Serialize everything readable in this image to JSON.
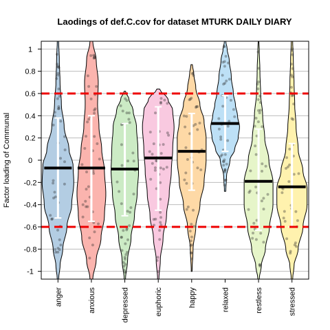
{
  "chart_data": {
    "type": "violin",
    "title": "Laodings of def.C.cov for dataset MTURK DAILY DIARY",
    "xlabel": "",
    "ylabel": "Factor loading of Communal",
    "ylim": [
      -1.07,
      1.07
    ],
    "yticks": [
      "-1",
      "-0.8",
      "-0.6",
      "-0.4",
      "-0.2",
      "0",
      "0.2",
      "0.4",
      "0.6",
      "0.8",
      "1"
    ],
    "ytick_values": [
      -1,
      -0.8,
      -0.6,
      -0.4,
      -0.2,
      0,
      0.2,
      0.4,
      0.6,
      0.8,
      1
    ],
    "grid": true,
    "reference_lines": [
      0.6,
      -0.6
    ],
    "reference_line_color": "#ee0000",
    "categories": [
      "anger",
      "anxious",
      "depressed",
      "euphoric",
      "happy",
      "relaxed",
      "restless",
      "stressed"
    ],
    "series": [
      {
        "color": "#b3cde3",
        "mean": -0.07,
        "sd_low": -0.52,
        "sd_high": 0.38,
        "min": -1.07,
        "max": 1.07,
        "profile": [
          [
            -1.07,
            1
          ],
          [
            -0.95,
            3
          ],
          [
            -0.8,
            7
          ],
          [
            -0.6,
            13
          ],
          [
            -0.4,
            20
          ],
          [
            -0.2,
            23
          ],
          [
            -0.05,
            22
          ],
          [
            0.1,
            16
          ],
          [
            0.3,
            9
          ],
          [
            0.5,
            5
          ],
          [
            0.7,
            3
          ],
          [
            0.9,
            2
          ],
          [
            1.07,
            1
          ]
        ]
      },
      {
        "color": "#fbb4ae",
        "mean": -0.07,
        "sd_low": -0.55,
        "sd_high": 0.4,
        "min": -1.07,
        "max": 1.07,
        "profile": [
          [
            -1.07,
            2
          ],
          [
            -0.9,
            7
          ],
          [
            -0.7,
            14
          ],
          [
            -0.5,
            19
          ],
          [
            -0.3,
            21
          ],
          [
            -0.1,
            19
          ],
          [
            0.1,
            15
          ],
          [
            0.3,
            11
          ],
          [
            0.5,
            9
          ],
          [
            0.7,
            10
          ],
          [
            0.9,
            7
          ],
          [
            1.07,
            2
          ]
        ]
      },
      {
        "color": "#ccebc5",
        "mean": -0.08,
        "sd_low": -0.5,
        "sd_high": 0.33,
        "min": -1.07,
        "max": 0.62,
        "profile": [
          [
            -1.07,
            1
          ],
          [
            -0.9,
            4
          ],
          [
            -0.7,
            9
          ],
          [
            -0.5,
            14
          ],
          [
            -0.3,
            18
          ],
          [
            -0.1,
            20
          ],
          [
            0.1,
            19
          ],
          [
            0.3,
            17
          ],
          [
            0.45,
            12
          ],
          [
            0.55,
            6
          ],
          [
            0.62,
            1
          ]
        ]
      },
      {
        "color": "#f9c9e0",
        "mean": 0.02,
        "sd_low": -0.45,
        "sd_high": 0.48,
        "min": -1.07,
        "max": 0.64,
        "profile": [
          [
            -1.07,
            1
          ],
          [
            -0.9,
            3
          ],
          [
            -0.7,
            7
          ],
          [
            -0.5,
            12
          ],
          [
            -0.3,
            16
          ],
          [
            -0.1,
            19
          ],
          [
            0.1,
            21
          ],
          [
            0.3,
            23
          ],
          [
            0.45,
            21
          ],
          [
            0.55,
            14
          ],
          [
            0.64,
            2
          ]
        ]
      },
      {
        "color": "#fed9a6",
        "mean": 0.08,
        "sd_low": -0.27,
        "sd_high": 0.42,
        "min": -1.0,
        "max": 0.86,
        "profile": [
          [
            -1.0,
            0.6
          ],
          [
            -0.8,
            2
          ],
          [
            -0.6,
            6
          ],
          [
            -0.4,
            12
          ],
          [
            -0.2,
            18
          ],
          [
            0,
            21
          ],
          [
            0.2,
            21
          ],
          [
            0.35,
            18
          ],
          [
            0.5,
            12
          ],
          [
            0.65,
            6
          ],
          [
            0.78,
            3
          ],
          [
            0.86,
            1
          ]
        ]
      },
      {
        "color": "#bde0f6",
        "mean": 0.33,
        "sd_low": 0.08,
        "sd_high": 0.58,
        "min": -0.28,
        "max": 1.07,
        "profile": [
          [
            -0.28,
            1
          ],
          [
            -0.15,
            2
          ],
          [
            0,
            7
          ],
          [
            0.1,
            14
          ],
          [
            0.2,
            19
          ],
          [
            0.3,
            21
          ],
          [
            0.4,
            18
          ],
          [
            0.5,
            15
          ],
          [
            0.6,
            12
          ],
          [
            0.75,
            9
          ],
          [
            0.9,
            6
          ],
          [
            1.0,
            3
          ],
          [
            1.07,
            1
          ]
        ]
      },
      {
        "color": "#e6f5c9",
        "mean": -0.19,
        "sd_low": -0.63,
        "sd_high": 0.28,
        "min": -1.07,
        "max": 1.07,
        "profile": [
          [
            -1.07,
            1
          ],
          [
            -0.95,
            4
          ],
          [
            -0.8,
            10
          ],
          [
            -0.6,
            16
          ],
          [
            -0.4,
            21
          ],
          [
            -0.2,
            21
          ],
          [
            0,
            15
          ],
          [
            0.2,
            9
          ],
          [
            0.4,
            6
          ],
          [
            0.6,
            3
          ],
          [
            0.8,
            2
          ],
          [
            1.0,
            1
          ],
          [
            1.07,
            0.5
          ]
        ]
      },
      {
        "color": "#fff2ae",
        "mean": -0.24,
        "sd_low": -0.6,
        "sd_high": 0.15,
        "min": -1.07,
        "max": 1.07,
        "profile": [
          [
            -1.07,
            1
          ],
          [
            -0.95,
            3
          ],
          [
            -0.8,
            9
          ],
          [
            -0.6,
            16
          ],
          [
            -0.4,
            22
          ],
          [
            -0.25,
            22
          ],
          [
            -0.1,
            16
          ],
          [
            0.1,
            9
          ],
          [
            0.3,
            6
          ],
          [
            0.5,
            4
          ],
          [
            0.7,
            3
          ],
          [
            0.9,
            2
          ],
          [
            1.07,
            1
          ]
        ]
      }
    ]
  }
}
